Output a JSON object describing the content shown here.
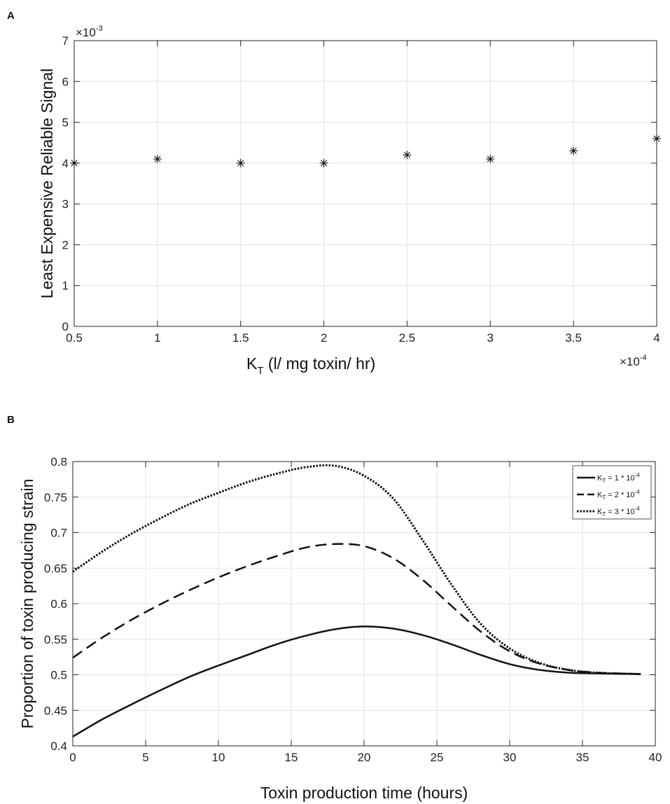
{
  "chart_data": [
    {
      "panel_label": "A",
      "type": "scatter",
      "marker": "asterisk",
      "x": [
        0.5,
        1.0,
        1.5,
        2.0,
        2.5,
        3.0,
        3.5,
        4.0
      ],
      "y": [
        4.0,
        4.1,
        4.0,
        4.0,
        4.2,
        4.1,
        4.3,
        4.6
      ],
      "xlim": [
        0.5,
        4.0
      ],
      "ylim": [
        0,
        7
      ],
      "xticks": [
        "0.5",
        "1",
        "1.5",
        "2",
        "2.5",
        "3",
        "3.5",
        "4"
      ],
      "yticks": [
        "0",
        "1",
        "2",
        "3",
        "4",
        "5",
        "6",
        "7"
      ],
      "y_exponent": {
        "base": "×10",
        "power": "-3"
      },
      "x_exponent": {
        "base": "×10",
        "power": "-4"
      },
      "xlabel": {
        "main": "K",
        "sub": "T",
        "rest": " (l/ mg toxin/ hr)"
      },
      "ylabel": "Least Expensive Reliable Signal",
      "grid": true
    },
    {
      "panel_label": "B",
      "type": "line",
      "xlim": [
        0,
        40
      ],
      "ylim": [
        0.4,
        0.8
      ],
      "xticks": [
        "0",
        "5",
        "10",
        "15",
        "20",
        "25",
        "30",
        "35",
        "40"
      ],
      "yticks": [
        "0.4",
        "0.45",
        "0.5",
        "0.55",
        "0.6",
        "0.65",
        "0.7",
        "0.75",
        "0.8"
      ],
      "xlabel": "Toxin production time (hours)",
      "ylabel": "Proportion of toxin producing strain",
      "grid": true,
      "legend_position": "top-right",
      "series": [
        {
          "name": "K_T = 1 * 10^-4",
          "legend": {
            "k": "K",
            "sub": "T",
            "mid": " = 1 * 10",
            "sup": "-4"
          },
          "style": "solid",
          "x": [
            0,
            2,
            4,
            6,
            8,
            10,
            12,
            14,
            16,
            18,
            20,
            22,
            24,
            26,
            28,
            30,
            32,
            34,
            36,
            39
          ],
          "y": [
            0.413,
            0.437,
            0.458,
            0.478,
            0.497,
            0.513,
            0.528,
            0.543,
            0.555,
            0.564,
            0.568,
            0.565,
            0.556,
            0.543,
            0.528,
            0.515,
            0.507,
            0.503,
            0.502,
            0.501
          ]
        },
        {
          "name": "K_T = 2 * 10^-4",
          "legend": {
            "k": "K",
            "sub": "T",
            "mid": " = 2 * 10",
            "sup": "-4"
          },
          "style": "dashed",
          "x": [
            0,
            2,
            4,
            6,
            8,
            10,
            12,
            14,
            16,
            18,
            20,
            22,
            24,
            26,
            28,
            30,
            32,
            34,
            36,
            39
          ],
          "y": [
            0.524,
            0.552,
            0.577,
            0.599,
            0.619,
            0.637,
            0.653,
            0.667,
            0.679,
            0.684,
            0.681,
            0.664,
            0.634,
            0.597,
            0.561,
            0.533,
            0.516,
            0.507,
            0.503,
            0.501
          ]
        },
        {
          "name": "K_T = 3 * 10^-4",
          "legend": {
            "k": "K",
            "sub": "T",
            "mid": " = 3 * 10",
            "sup": "-4"
          },
          "style": "dotted",
          "x": [
            0,
            2,
            4,
            6,
            8,
            10,
            12,
            14,
            16,
            18,
            20,
            22,
            24,
            26,
            28,
            30,
            32,
            34,
            36,
            39
          ],
          "y": [
            0.645,
            0.673,
            0.698,
            0.72,
            0.74,
            0.756,
            0.771,
            0.783,
            0.792,
            0.794,
            0.78,
            0.748,
            0.69,
            0.627,
            0.572,
            0.537,
            0.517,
            0.507,
            0.503,
            0.501
          ]
        }
      ]
    }
  ]
}
